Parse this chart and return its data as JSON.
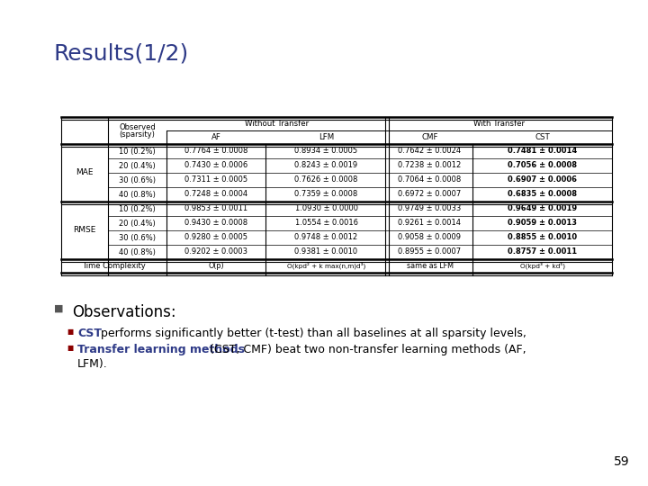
{
  "title": "Results(1/2)",
  "title_color": "#2E3A87",
  "title_fontsize": 18,
  "background_color": "#FFFFFF",
  "table": {
    "rows": [
      [
        "MAE",
        "10 (0.2%)",
        "0.7764 ± 0.0008",
        "0.8934 ± 0.0005",
        "0.7642 ± 0.0024",
        "0.7481 ± 0.0014"
      ],
      [
        "",
        "20 (0.4%)",
        "0.7430 ± 0.0006",
        "0.8243 ± 0.0019",
        "0.7238 ± 0.0012",
        "0.7056 ± 0.0008"
      ],
      [
        "",
        "30 (0.6%)",
        "0.7311 ± 0.0005",
        "0.7626 ± 0.0008",
        "0.7064 ± 0.0008",
        "0.6907 ± 0.0006"
      ],
      [
        "",
        "40 (0.8%)",
        "0.7248 ± 0.0004",
        "0.7359 ± 0.0008",
        "0.6972 ± 0.0007",
        "0.6835 ± 0.0008"
      ],
      [
        "RMSE",
        "10 (0.2%)",
        "0.9853 ± 0.0011",
        "1.0930 ± 0.0000",
        "0.9749 ± 0.0033",
        "0.9649 ± 0.0019"
      ],
      [
        "",
        "20 (0.4%)",
        "0.9430 ± 0.0008",
        "1.0554 ± 0.0016",
        "0.9261 ± 0.0014",
        "0.9059 ± 0.0013"
      ],
      [
        "",
        "30 (0.6%)",
        "0.9280 ± 0.0005",
        "0.9748 ± 0.0012",
        "0.9058 ± 0.0009",
        "0.8855 ± 0.0010"
      ],
      [
        "",
        "40 (0.8%)",
        "0.9202 ± 0.0003",
        "0.9381 ± 0.0010",
        "0.8955 ± 0.0007",
        "0.8757 ± 0.0011"
      ]
    ],
    "tc_row": [
      "Time Complexity",
      "O(p)",
      "O(kpd² + k max(n,m)d³)",
      "same as LFM",
      "O(kpd³ + kd⁵)"
    ]
  },
  "observations_title": "Observations:",
  "obs_bullet1_blue": "CST",
  "obs_bullet1_black": " performs significantly better (t-test) than all baselines at all sparsity levels,",
  "obs_bullet2_blue": "Transfer learning methods",
  "obs_bullet2_line1_black": " (CST, CMF) beat two non-transfer learning methods (AF,",
  "obs_bullet2_line2": "LFM).",
  "bullet_square_color": "#8B0000",
  "highlight_color": "#2E3A87",
  "text_color": "#000000",
  "page_number": "59"
}
